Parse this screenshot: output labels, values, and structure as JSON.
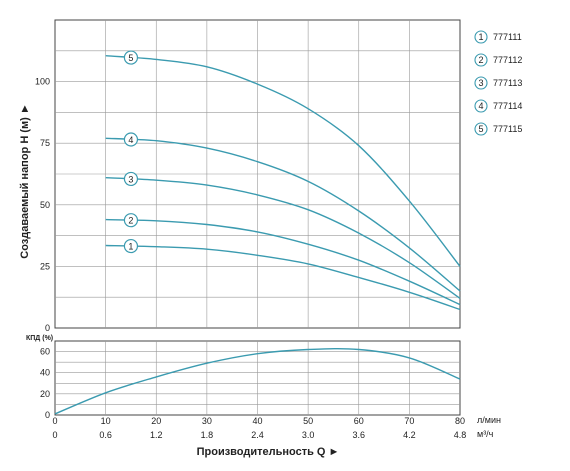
{
  "chart_data": [
    {
      "type": "line",
      "ylabel": "Создаваемый напор H (м) ►",
      "xlabel": "Производительность Q ►",
      "x_unit_lmin": "л/мин",
      "x_unit_m3h": "м³/ч",
      "x_ticks_lmin": [
        "0",
        "10",
        "20",
        "30",
        "40",
        "50",
        "60",
        "70",
        "80"
      ],
      "x_ticks_m3h": [
        "0",
        "0.6",
        "1.2",
        "1.8",
        "2.4",
        "3.0",
        "3.6",
        "4.2",
        "4.8"
      ],
      "xlim": [
        0,
        80
      ],
      "ylim": [
        0,
        125
      ],
      "y_ticks": [
        "0",
        "25",
        "50",
        "75",
        "100"
      ],
      "grid": true,
      "legend_position": "right",
      "x": [
        10,
        20,
        30,
        40,
        50,
        60,
        70,
        80
      ],
      "series": [
        {
          "name": "777111",
          "marker": "1",
          "values": [
            33.5,
            33,
            32,
            29.5,
            26,
            20.5,
            14.5,
            7.5
          ]
        },
        {
          "name": "777112",
          "marker": "2",
          "values": [
            44,
            43.5,
            42,
            39,
            34,
            27.5,
            19,
            9.5
          ]
        },
        {
          "name": "777113",
          "marker": "3",
          "values": [
            61,
            60,
            58,
            54,
            48,
            38.5,
            26.5,
            12
          ]
        },
        {
          "name": "777114",
          "marker": "4",
          "values": [
            77,
            76,
            73,
            67.5,
            59.5,
            47.5,
            32.5,
            15
          ]
        },
        {
          "name": "777115",
          "marker": "5",
          "values": [
            110.5,
            109,
            106,
            99,
            89,
            74,
            51.5,
            25
          ]
        }
      ]
    },
    {
      "type": "line",
      "ylabel": "КПД (%)",
      "xlim": [
        0,
        80
      ],
      "ylim": [
        0,
        70
      ],
      "y_ticks": [
        "0",
        "20",
        "40",
        "60"
      ],
      "grid": true,
      "x": [
        0,
        10,
        20,
        30,
        40,
        50,
        60,
        70,
        80
      ],
      "series": [
        {
          "values": [
            1,
            21,
            36,
            49,
            58,
            62,
            62,
            54,
            34
          ]
        }
      ]
    }
  ],
  "colors": {
    "curve": "#3b9bb0",
    "grid": "#9a9a9a",
    "axis": "#444444",
    "text": "#222222"
  }
}
